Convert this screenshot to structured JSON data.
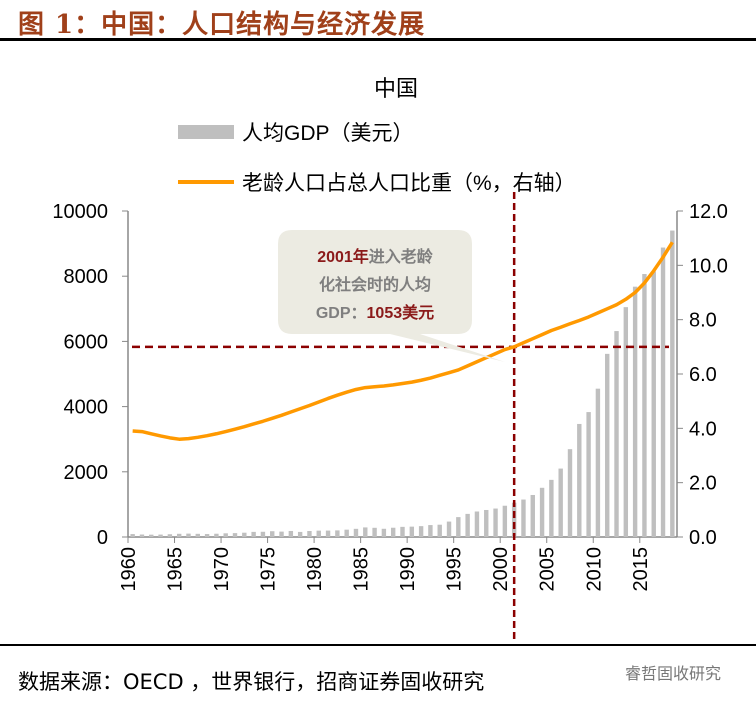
{
  "header": {
    "title": "图 1：中国：人口结构与经济发展"
  },
  "footer": {
    "source": "数据来源：OECD ，世界银行，招商证券固收研究",
    "watermark": "睿哲固收研究"
  },
  "chart_data": {
    "type": "bar+line",
    "title": "中国",
    "legend_placement": "top",
    "x": [
      1960,
      1961,
      1962,
      1963,
      1964,
      1965,
      1966,
      1967,
      1968,
      1969,
      1970,
      1971,
      1972,
      1973,
      1974,
      1975,
      1976,
      1977,
      1978,
      1979,
      1980,
      1981,
      1982,
      1983,
      1984,
      1985,
      1986,
      1987,
      1988,
      1989,
      1990,
      1991,
      1992,
      1993,
      1994,
      1995,
      1996,
      1997,
      1998,
      1999,
      2000,
      2001,
      2002,
      2003,
      2004,
      2005,
      2006,
      2007,
      2008,
      2009,
      2010,
      2011,
      2012,
      2013,
      2014,
      2015,
      2016,
      2017,
      2018
    ],
    "x_tick_labels": [
      "1960",
      "1965",
      "1970",
      "1975",
      "1980",
      "1985",
      "1990",
      "1995",
      "2000",
      "2005",
      "2010",
      "2015"
    ],
    "y_left": {
      "range": [
        0,
        10000
      ],
      "ticks": [
        "0",
        "2000",
        "4000",
        "6000",
        "8000",
        "10000"
      ]
    },
    "y_right": {
      "range": [
        0,
        12
      ],
      "ticks": [
        "0.0",
        "2.0",
        "4.0",
        "6.0",
        "8.0",
        "10.0",
        "12.0"
      ]
    },
    "series": [
      {
        "name": "人均GDP（美元）",
        "type": "bar",
        "axis": "left",
        "color": "#bfbfbf",
        "values": [
          90,
          76,
          71,
          74,
          85,
          98,
          104,
          97,
          91,
          100,
          113,
          119,
          132,
          157,
          160,
          178,
          165,
          185,
          156,
          184,
          195,
          197,
          203,
          225,
          251,
          294,
          282,
          252,
          284,
          311,
          318,
          333,
          366,
          377,
          473,
          610,
          709,
          782,
          829,
          873,
          959,
          1053,
          1149,
          1289,
          1509,
          1753,
          2099,
          2694,
          3468,
          3832,
          4550,
          5618,
          6317,
          7051,
          7679,
          8067,
          8148,
          8879,
          9400
        ]
      },
      {
        "name": "老龄人口占总人口比重（%，右轴）",
        "type": "line",
        "axis": "right",
        "color": "#ff9900",
        "values": [
          3.9,
          3.88,
          3.8,
          3.72,
          3.65,
          3.6,
          3.62,
          3.67,
          3.73,
          3.8,
          3.88,
          3.97,
          4.06,
          4.16,
          4.26,
          4.37,
          4.48,
          4.6,
          4.72,
          4.84,
          4.97,
          5.1,
          5.22,
          5.33,
          5.43,
          5.5,
          5.53,
          5.56,
          5.6,
          5.65,
          5.7,
          5.77,
          5.85,
          5.95,
          6.05,
          6.15,
          6.3,
          6.45,
          6.6,
          6.75,
          6.9,
          7.0,
          7.15,
          7.3,
          7.45,
          7.6,
          7.72,
          7.85,
          7.97,
          8.1,
          8.25,
          8.4,
          8.55,
          8.75,
          9.0,
          9.35,
          9.8,
          10.3,
          10.85
        ]
      }
    ],
    "reference_lines": {
      "color": "#8b0000",
      "vertical_x": 2001,
      "horizontal_y_right": 7.0
    },
    "annotation": {
      "line1_bold": "2001年",
      "line1_rest": "进入老龄",
      "line2": "化社会时的人均",
      "line3_prefix": "GDP：",
      "line3_bold": "1053美元"
    }
  }
}
